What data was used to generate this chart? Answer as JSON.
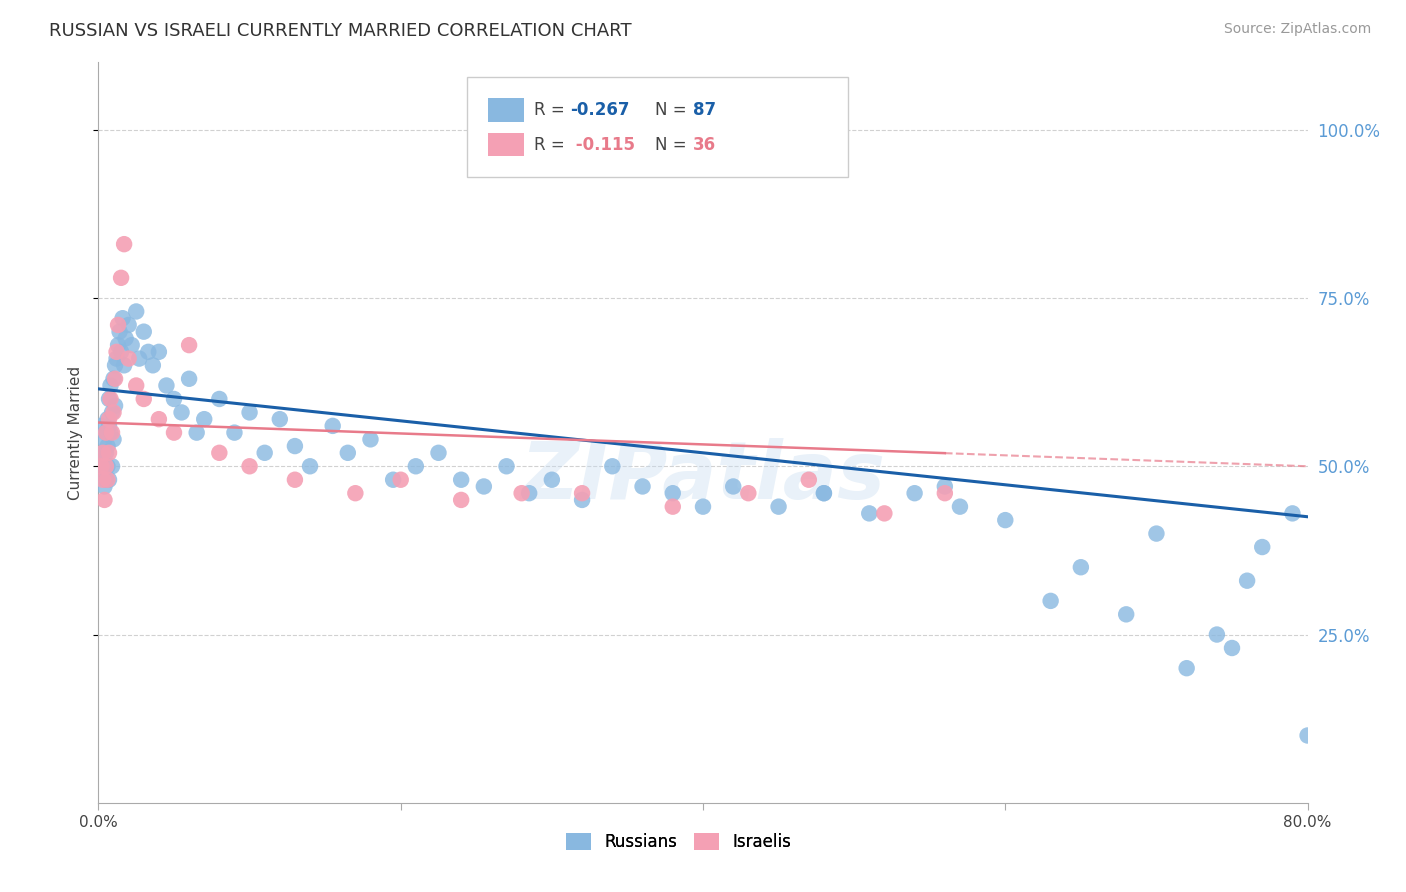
{
  "title": "RUSSIAN VS ISRAELI CURRENTLY MARRIED CORRELATION CHART",
  "source": "Source: ZipAtlas.com",
  "ylabel": "Currently Married",
  "watermark": "ZIPatlas",
  "xlim": [
    0.0,
    0.8
  ],
  "ylim": [
    0.0,
    1.1
  ],
  "xtick_positions": [
    0.0,
    0.2,
    0.4,
    0.6,
    0.8
  ],
  "xtick_labels": [
    "0.0%",
    "",
    "",
    "",
    "80.0%"
  ],
  "ytick_positions": [
    0.25,
    0.5,
    0.75,
    1.0
  ],
  "ytick_labels": [
    "25.0%",
    "50.0%",
    "75.0%",
    "100.0%"
  ],
  "russian_color": "#89b8e0",
  "israeli_color": "#f4a0b4",
  "trendline_russian_color": "#1a5fa8",
  "trendline_israeli_color": "#e87a8a",
  "background_color": "#ffffff",
  "grid_color": "#cccccc",
  "axis_color": "#aaaaaa",
  "right_tick_color": "#5b9bd5",
  "title_fontsize": 13,
  "label_fontsize": 11,
  "tick_fontsize": 11,
  "source_fontsize": 10,
  "russian_x": [
    0.002,
    0.003,
    0.003,
    0.004,
    0.004,
    0.004,
    0.005,
    0.005,
    0.005,
    0.006,
    0.006,
    0.006,
    0.007,
    0.007,
    0.007,
    0.008,
    0.008,
    0.009,
    0.009,
    0.01,
    0.01,
    0.011,
    0.011,
    0.012,
    0.013,
    0.014,
    0.015,
    0.016,
    0.017,
    0.018,
    0.02,
    0.022,
    0.025,
    0.027,
    0.03,
    0.033,
    0.036,
    0.04,
    0.045,
    0.05,
    0.055,
    0.06,
    0.065,
    0.07,
    0.08,
    0.09,
    0.1,
    0.11,
    0.12,
    0.13,
    0.14,
    0.155,
    0.165,
    0.18,
    0.195,
    0.21,
    0.225,
    0.24,
    0.255,
    0.27,
    0.285,
    0.3,
    0.32,
    0.34,
    0.36,
    0.38,
    0.4,
    0.42,
    0.45,
    0.48,
    0.51,
    0.54,
    0.57,
    0.6,
    0.63,
    0.65,
    0.68,
    0.72,
    0.75,
    0.77,
    0.79,
    0.8,
    0.76,
    0.74,
    0.7,
    0.56,
    0.48
  ],
  "russian_y": [
    0.56,
    0.52,
    0.49,
    0.54,
    0.5,
    0.47,
    0.55,
    0.52,
    0.48,
    0.57,
    0.53,
    0.5,
    0.6,
    0.56,
    0.48,
    0.62,
    0.55,
    0.58,
    0.5,
    0.63,
    0.54,
    0.65,
    0.59,
    0.66,
    0.68,
    0.7,
    0.67,
    0.72,
    0.65,
    0.69,
    0.71,
    0.68,
    0.73,
    0.66,
    0.7,
    0.67,
    0.65,
    0.67,
    0.62,
    0.6,
    0.58,
    0.63,
    0.55,
    0.57,
    0.6,
    0.55,
    0.58,
    0.52,
    0.57,
    0.53,
    0.5,
    0.56,
    0.52,
    0.54,
    0.48,
    0.5,
    0.52,
    0.48,
    0.47,
    0.5,
    0.46,
    0.48,
    0.45,
    0.5,
    0.47,
    0.46,
    0.44,
    0.47,
    0.44,
    0.46,
    0.43,
    0.46,
    0.44,
    0.42,
    0.3,
    0.35,
    0.28,
    0.2,
    0.23,
    0.38,
    0.43,
    0.1,
    0.33,
    0.25,
    0.4,
    0.47,
    0.46
  ],
  "israeli_x": [
    0.002,
    0.003,
    0.003,
    0.004,
    0.005,
    0.005,
    0.006,
    0.007,
    0.007,
    0.008,
    0.009,
    0.01,
    0.011,
    0.012,
    0.013,
    0.015,
    0.017,
    0.02,
    0.025,
    0.03,
    0.04,
    0.05,
    0.06,
    0.08,
    0.1,
    0.13,
    0.17,
    0.2,
    0.24,
    0.28,
    0.32,
    0.38,
    0.43,
    0.47,
    0.52,
    0.56
  ],
  "israeli_y": [
    0.5,
    0.48,
    0.52,
    0.45,
    0.55,
    0.5,
    0.48,
    0.57,
    0.52,
    0.6,
    0.55,
    0.58,
    0.63,
    0.67,
    0.71,
    0.78,
    0.83,
    0.66,
    0.62,
    0.6,
    0.57,
    0.55,
    0.68,
    0.52,
    0.5,
    0.48,
    0.46,
    0.48,
    0.45,
    0.46,
    0.46,
    0.44,
    0.46,
    0.48,
    0.43,
    0.46
  ],
  "trendline_russian_x0": 0.0,
  "trendline_russian_y0": 0.615,
  "trendline_russian_x1": 0.8,
  "trendline_russian_y1": 0.425,
  "trendline_israeli_x0": 0.0,
  "trendline_israeli_y0": 0.565,
  "trendline_israeli_x1": 0.8,
  "trendline_israeli_y1": 0.5
}
